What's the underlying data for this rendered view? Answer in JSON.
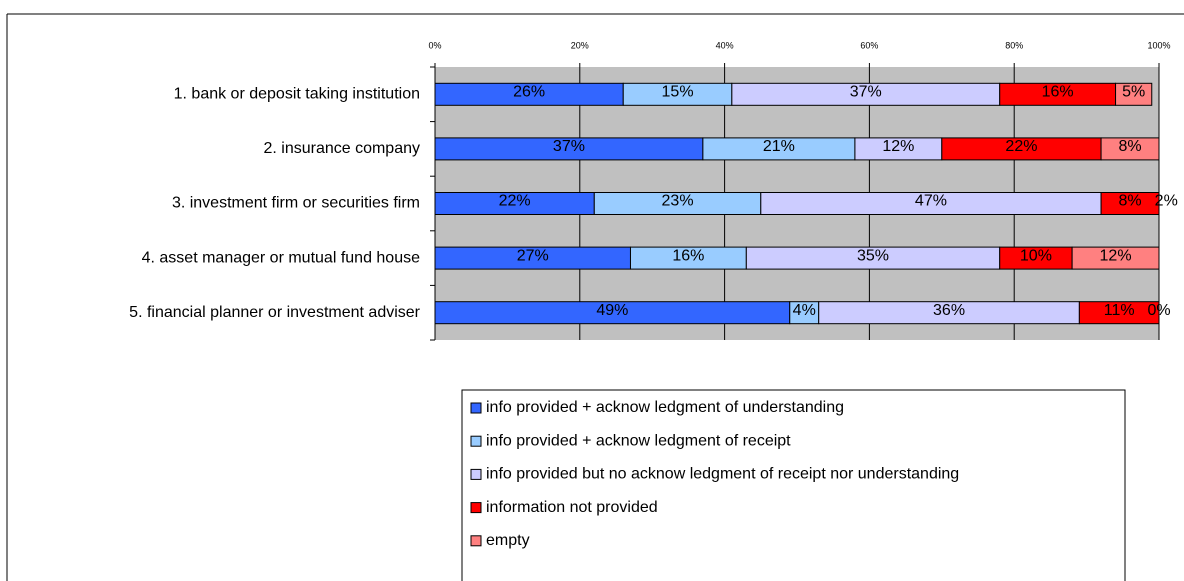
{
  "chart_data": {
    "type": "bar",
    "orientation": "horizontal",
    "stacked": true,
    "categories": [
      "1. bank or deposit taking institution",
      "2. insurance company",
      "3. investment firm or securities firm",
      "4. asset manager or mutual fund house",
      "5. financial planner or investment adviser"
    ],
    "series": [
      {
        "name": "info provided + acknow ledgment of understanding",
        "color": "#3366ff",
        "values": [
          26,
          37,
          22,
          27,
          49
        ],
        "value_labels": [
          "26%",
          "37%",
          "22%",
          "27%",
          "49%"
        ]
      },
      {
        "name": "info provided + acknow ledgment of receipt",
        "color": "#99ccff",
        "values": [
          15,
          21,
          23,
          16,
          4
        ],
        "value_labels": [
          "15%",
          "21%",
          "23%",
          "16%",
          "4%"
        ]
      },
      {
        "name": "info provided but no acknow ledgment of receipt nor understanding",
        "color": "#ccccff",
        "values": [
          37,
          12,
          47,
          35,
          36
        ],
        "value_labels": [
          "37%",
          "12%",
          "47%",
          "35%",
          "36%"
        ]
      },
      {
        "name": "information not provided",
        "color": "#ff0000",
        "values": [
          16,
          22,
          8,
          10,
          11
        ],
        "value_labels": [
          "16%",
          "22%",
          "8%",
          "10%",
          "11%"
        ]
      },
      {
        "name": "empty",
        "color": "#ff8080",
        "values": [
          5,
          8,
          2,
          12,
          0
        ],
        "value_labels": [
          "5%",
          "8%",
          "2%",
          "12%",
          "0%"
        ]
      }
    ],
    "xlim": [
      0,
      100
    ],
    "xticks": [
      {
        "value": 0,
        "label": "0%"
      },
      {
        "value": 20,
        "label": "20%"
      },
      {
        "value": 40,
        "label": "40%"
      },
      {
        "value": 60,
        "label": "60%"
      },
      {
        "value": 80,
        "label": "80%"
      },
      {
        "value": 100,
        "label": "100%"
      }
    ],
    "grid": true
  }
}
